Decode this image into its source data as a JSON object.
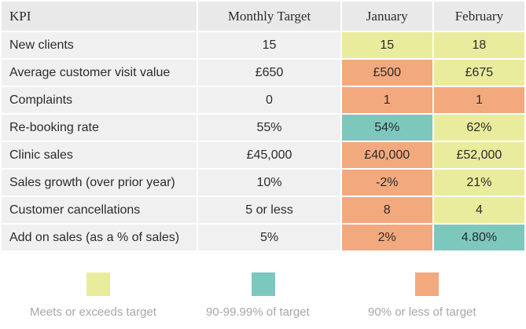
{
  "table": {
    "headers": [
      "KPI",
      "Monthly Target",
      "January",
      "February"
    ],
    "rows": [
      {
        "kpi": "New clients",
        "target": "15",
        "january": {
          "value": "15",
          "status": "meets"
        },
        "february": {
          "value": "18",
          "status": "meets"
        }
      },
      {
        "kpi": "Average customer visit value",
        "target": "£650",
        "january": {
          "value": "£500",
          "status": "below"
        },
        "february": {
          "value": "£675",
          "status": "meets"
        }
      },
      {
        "kpi": "Complaints",
        "target": "0",
        "january": {
          "value": "1",
          "status": "below"
        },
        "february": {
          "value": "1",
          "status": "below"
        }
      },
      {
        "kpi": "Re-booking rate",
        "target": "55%",
        "january": {
          "value": "54%",
          "status": "close"
        },
        "february": {
          "value": "62%",
          "status": "meets"
        }
      },
      {
        "kpi": "Clinic sales",
        "target": "£45,000",
        "january": {
          "value": "£40,000",
          "status": "below"
        },
        "february": {
          "value": "£52,000",
          "status": "meets"
        }
      },
      {
        "kpi": "Sales growth (over prior year)",
        "target": "10%",
        "january": {
          "value": "-2%",
          "status": "below"
        },
        "february": {
          "value": "21%",
          "status": "meets"
        }
      },
      {
        "kpi": "Customer cancellations",
        "target": "5 or less",
        "january": {
          "value": "8",
          "status": "below"
        },
        "february": {
          "value": "4",
          "status": "meets"
        }
      },
      {
        "kpi": "Add on sales (as a % of sales)",
        "target": "5%",
        "january": {
          "value": "2%",
          "status": "below"
        },
        "february": {
          "value": "4.80%",
          "status": "close"
        }
      }
    ]
  },
  "legend": [
    {
      "label": "Meets or exceeds target",
      "color": "#e9ec9d"
    },
    {
      "label": "90-99.99% of target",
      "color": "#7dc8bd"
    },
    {
      "label": "90% or less of target",
      "color": "#f3a97e"
    }
  ]
}
